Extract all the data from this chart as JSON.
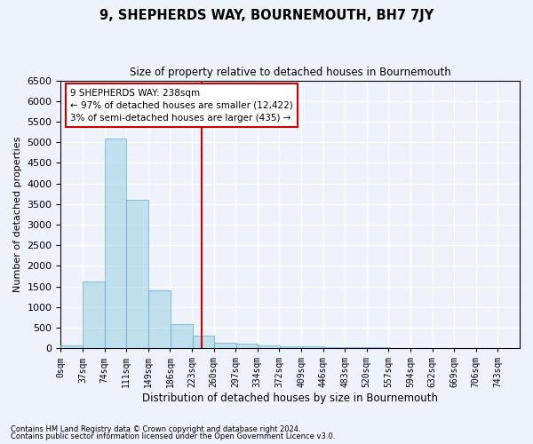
{
  "title": "9, SHEPHERDS WAY, BOURNEMOUTH, BH7 7JY",
  "subtitle": "Size of property relative to detached houses in Bournemouth",
  "xlabel": "Distribution of detached houses by size in Bournemouth",
  "ylabel": "Number of detached properties",
  "footnote1": "Contains HM Land Registry data © Crown copyright and database right 2024.",
  "footnote2": "Contains public sector information licensed under the Open Government Licence v3.0.",
  "annotation_title": "9 SHEPHERDS WAY: 238sqm",
  "annotation_line1": "← 97% of detached houses are smaller (12,422)",
  "annotation_line2": "3% of semi-detached houses are larger (435) →",
  "property_size": 238,
  "bin_width": 37,
  "bin_starts": [
    0,
    37,
    74,
    111,
    149,
    186,
    223,
    260,
    297,
    334,
    372,
    409,
    446,
    483,
    520,
    557,
    594,
    632,
    669,
    706
  ],
  "bin_counts": [
    70,
    1630,
    5080,
    3600,
    1400,
    580,
    300,
    130,
    110,
    60,
    50,
    50,
    30,
    20,
    15,
    10,
    8,
    5,
    4,
    3
  ],
  "bar_color": "#add8e6",
  "bar_edge_color": "#6baed6",
  "bar_alpha": 0.7,
  "vline_color": "#cc0000",
  "vline_x": 238,
  "annotation_box_color": "#cc0000",
  "background_color": "#eef2fb",
  "grid_color": "#ffffff",
  "ylim": [
    0,
    6500
  ],
  "yticks": [
    0,
    500,
    1000,
    1500,
    2000,
    2500,
    3000,
    3500,
    4000,
    4500,
    5000,
    5500,
    6000,
    6500
  ],
  "tick_labels": [
    "0sqm",
    "37sqm",
    "74sqm",
    "111sqm",
    "149sqm",
    "186sqm",
    "223sqm",
    "260sqm",
    "297sqm",
    "334sqm",
    "372sqm",
    "409sqm",
    "446sqm",
    "483sqm",
    "520sqm",
    "557sqm",
    "594sqm",
    "632sqm",
    "669sqm",
    "706sqm",
    "743sqm"
  ],
  "num_display_ticks": 21
}
